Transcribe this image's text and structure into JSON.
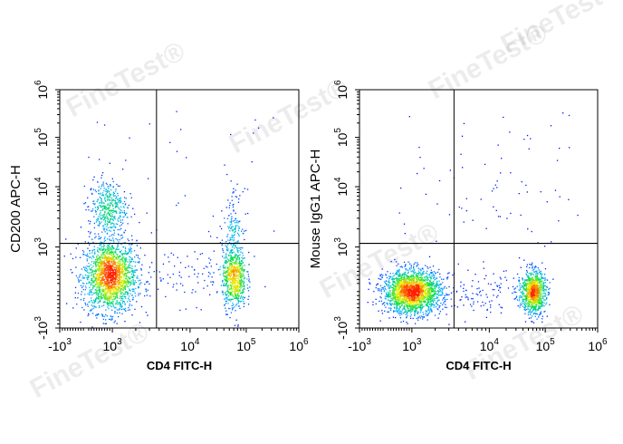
{
  "watermark": "FineTest®",
  "colors": {
    "density": [
      "#0000ff",
      "#00b4ff",
      "#00e040",
      "#f0f000",
      "#ff2000"
    ],
    "axis": "#000000",
    "gate": "#000000"
  },
  "chart_data": [
    {
      "type": "scatter",
      "subtype": "flow-cytometry-density-dot-plot",
      "xlabel": "CD4 FITC-H",
      "ylabel": "CD200 APC-H",
      "x_scale": "biexponential",
      "y_scale": "biexponential",
      "xlim": [
        -1000,
        1000000
      ],
      "ylim": [
        -1000,
        1000000
      ],
      "x_ticks": [
        {
          "base": "-10",
          "exp": "3",
          "value": -1000
        },
        {
          "base": "10",
          "exp": "3",
          "value": 1000
        },
        {
          "base": "10",
          "exp": "4",
          "value": 10000
        },
        {
          "base": "10",
          "exp": "5",
          "value": 100000
        },
        {
          "base": "10",
          "exp": "6",
          "value": 1000000
        }
      ],
      "y_ticks": [
        {
          "base": "-10",
          "exp": "3",
          "value": -1000
        },
        {
          "base": "10",
          "exp": "3",
          "value": 1000
        },
        {
          "base": "10",
          "exp": "4",
          "value": 10000
        },
        {
          "base": "10",
          "exp": "5",
          "value": 100000
        },
        {
          "base": "10",
          "exp": "6",
          "value": 1000000
        }
      ],
      "quadrant_gate": {
        "x": 3700,
        "y": 1150
      },
      "populations": [
        {
          "label": "CD4- CD200-",
          "x": 900,
          "y": 280,
          "sx": 0.055,
          "sy": 0.075,
          "weight": 0.58
        },
        {
          "label": "CD4- CD200+",
          "x": 800,
          "y": 4500,
          "sx": 0.04,
          "sy": 0.06,
          "weight": 0.13
        },
        {
          "label": "CD4+ CD200-",
          "x": 60000,
          "y": 250,
          "sx": 0.025,
          "sy": 0.065,
          "weight": 0.22
        },
        {
          "label": "CD4+ CD200 low",
          "x": 58000,
          "y": 2500,
          "sx": 0.02,
          "sy": 0.07,
          "weight": 0.04
        },
        {
          "label": "CD4 intermediate",
          "x": 9000,
          "y": 300,
          "sx": 0.12,
          "sy": 0.06,
          "weight": 0.03
        }
      ]
    },
    {
      "type": "scatter",
      "subtype": "flow-cytometry-density-dot-plot",
      "xlabel": "CD4 FITC-H",
      "ylabel": "Mouse IgG1 APC-H",
      "x_scale": "biexponential",
      "y_scale": "biexponential",
      "xlim": [
        -1000,
        1000000
      ],
      "ylim": [
        -1000,
        1000000
      ],
      "x_ticks": [
        {
          "base": "-10",
          "exp": "3",
          "value": -1000
        },
        {
          "base": "10",
          "exp": "3",
          "value": 1000
        },
        {
          "base": "10",
          "exp": "4",
          "value": 10000
        },
        {
          "base": "10",
          "exp": "5",
          "value": 100000
        },
        {
          "base": "10",
          "exp": "6",
          "value": 1000000
        }
      ],
      "y_ticks": [
        {
          "base": "-10",
          "exp": "3",
          "value": -1000
        },
        {
          "base": "10",
          "exp": "3",
          "value": 1000
        },
        {
          "base": "10",
          "exp": "4",
          "value": 10000
        },
        {
          "base": "10",
          "exp": "5",
          "value": 100000
        },
        {
          "base": "10",
          "exp": "6",
          "value": 1000000
        }
      ],
      "quadrant_gate": {
        "x": 3500,
        "y": 1150
      },
      "populations": [
        {
          "label": "CD4-",
          "x": 1000,
          "y": -100,
          "sx": 0.06,
          "sy": 0.045,
          "weight": 0.66
        },
        {
          "label": "CD4+",
          "x": 60000,
          "y": -100,
          "sx": 0.025,
          "sy": 0.045,
          "weight": 0.29
        },
        {
          "label": "CD4 intermediate",
          "x": 9000,
          "y": -80,
          "sx": 0.1,
          "sy": 0.05,
          "weight": 0.04
        },
        {
          "label": "sparse positive",
          "x": 20000,
          "y": 8000,
          "sx": 0.15,
          "sy": 0.12,
          "weight": 0.01
        }
      ]
    }
  ]
}
